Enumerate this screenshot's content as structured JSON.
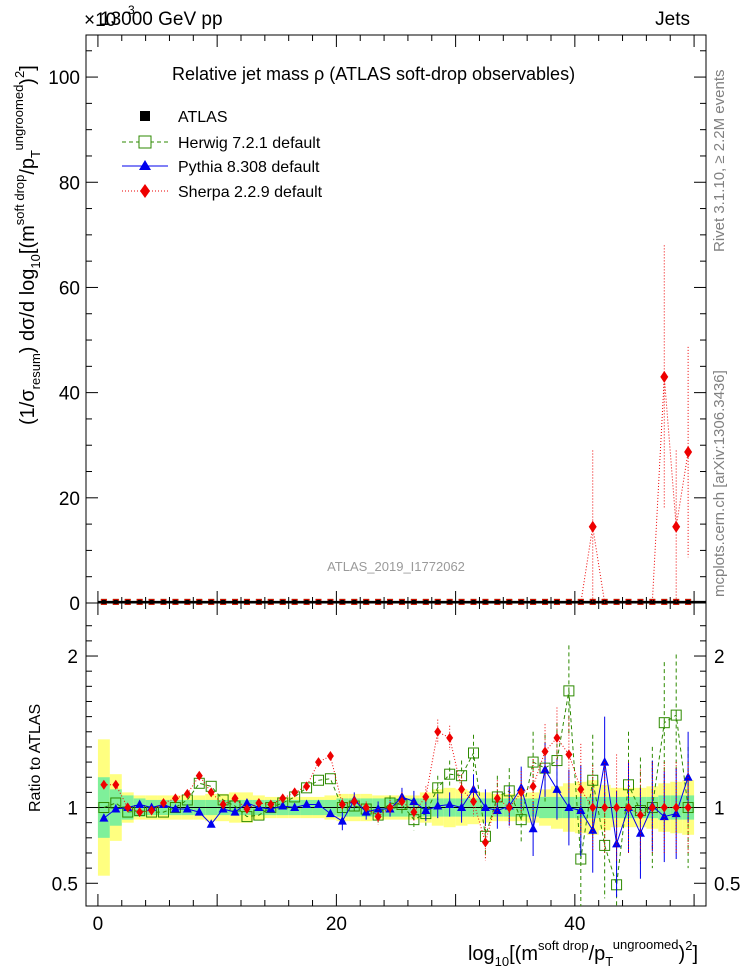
{
  "header": {
    "left": "13000 GeV pp",
    "right": "Jets",
    "exponent": "×10"
  },
  "side_labels": {
    "rivet": "Rivet 3.1.10, ≥ 2.2M events",
    "mcplots": "mcplots.cern.ch [arXiv:1306.3436]"
  },
  "watermark": "ATLAS_2019_I1772062",
  "colors": {
    "atlas": "#000000",
    "herwig": "#2d8a00",
    "pythia": "#0000ee",
    "sherpa": "#ee0000",
    "band_inner": "#7ff09a",
    "band_outer": "#ffff80"
  },
  "chart_data": [
    {
      "type": "scatter",
      "title": "Relative jet mass ρ (ATLAS soft-drop observables)",
      "ylabel": "(1/σ_resum) dσ/d log10[(m^{soft drop}/p_T^{ungroomed})^2]",
      "ylabel_parts": {
        "pre": "(1/σ",
        "sub1": "resum",
        "mid": ") dσ/d log",
        "sub2": "10",
        "post": "[(m",
        "sup1": "soft drop",
        "mid2": "/p",
        "sub3": "T",
        "sup2": "ungroomed",
        "end": ")",
        "sup3": "2",
        "close": "]"
      },
      "xlim": [
        -1,
        51
      ],
      "ylim": [
        0,
        108
      ],
      "yticks": [
        0,
        20,
        40,
        60,
        80,
        100
      ],
      "y_multiplier_label": "×10³",
      "legend_position": "top-left",
      "series": [
        {
          "name": "ATLAS",
          "marker": "square",
          "x": [
            0.5,
            1.5,
            2.5,
            3.5,
            4.5,
            5.5,
            6.5,
            7.5,
            8.5,
            9.5,
            10.5,
            11.5,
            12.5,
            13.5,
            14.5,
            15.5,
            16.5,
            17.5,
            18.5,
            19.5,
            20.5,
            21.5,
            22.5,
            23.5,
            24.5,
            25.5,
            26.5,
            27.5,
            28.5,
            29.5,
            30.5,
            31.5,
            32.5,
            33.5,
            34.5,
            35.5,
            36.5,
            37.5,
            38.5,
            39.5,
            40.5,
            41.5,
            42.5,
            43.5,
            44.5,
            45.5,
            46.5,
            47.5,
            48.5,
            49.5
          ],
          "y": [
            0.02,
            0.02,
            0.02,
            0.02,
            0.02,
            0.02,
            0.02,
            0.02,
            0.02,
            0.02,
            0.02,
            0.02,
            0.02,
            0.02,
            0.02,
            0.02,
            0.02,
            0.02,
            0.02,
            0.02,
            0.02,
            0.02,
            0.02,
            0.02,
            0.02,
            0.02,
            0.02,
            0.02,
            0.02,
            0.02,
            0.02,
            0.02,
            0.02,
            0.02,
            0.02,
            0.02,
            0.02,
            0.02,
            0.02,
            0.02,
            0.02,
            0.02,
            0.02,
            0.02,
            0.02,
            0.02,
            0.02,
            0.02,
            0.02,
            0.02
          ]
        },
        {
          "name": "Herwig 7.2.1 default",
          "marker": "open-square",
          "x": [],
          "y": []
        },
        {
          "name": "Pythia 8.308 default",
          "marker": "triangle",
          "x": [],
          "y": []
        },
        {
          "name": "Sherpa 2.2.9 default",
          "marker": "diamond",
          "x": [
            41.5,
            47.5,
            48.5,
            49.5
          ],
          "y": [
            14.5,
            43.0,
            14.5,
            28.7
          ],
          "err": [
            14.5,
            25.0,
            14.5,
            20.0
          ]
        }
      ]
    },
    {
      "type": "line",
      "ylabel": "Ratio to ATLAS",
      "xlabel": "log10[(m^{soft drop}/p_T^{ungroomed})^2]",
      "xlabel_parts": {
        "pre": "log",
        "sub1": "10",
        "mid": "[(m",
        "sup1": "soft drop",
        "mid2": "/p",
        "sub2": "T",
        "sup2": "ungroomed",
        "end": ")",
        "sup3": "2",
        "close": "]"
      },
      "xlim": [
        -1,
        51
      ],
      "ylim": [
        0.35,
        2.35
      ],
      "yticks": [
        0.5,
        1,
        2
      ],
      "xticks": [
        0,
        20,
        40
      ],
      "x": [
        0.5,
        1.5,
        2.5,
        3.5,
        4.5,
        5.5,
        6.5,
        7.5,
        8.5,
        9.5,
        10.5,
        11.5,
        12.5,
        13.5,
        14.5,
        15.5,
        16.5,
        17.5,
        18.5,
        19.5,
        20.5,
        21.5,
        22.5,
        23.5,
        24.5,
        25.5,
        26.5,
        27.5,
        28.5,
        29.5,
        30.5,
        31.5,
        32.5,
        33.5,
        34.5,
        35.5,
        36.5,
        37.5,
        38.5,
        39.5,
        40.5,
        41.5,
        42.5,
        43.5,
        44.5,
        45.5,
        46.5,
        47.5,
        48.5,
        49.5
      ],
      "band_inner": [
        0.2,
        0.12,
        0.08,
        0.06,
        0.05,
        0.05,
        0.05,
        0.05,
        0.05,
        0.05,
        0.05,
        0.05,
        0.05,
        0.05,
        0.05,
        0.05,
        0.05,
        0.05,
        0.05,
        0.05,
        0.06,
        0.06,
        0.06,
        0.06,
        0.06,
        0.06,
        0.06,
        0.06,
        0.06,
        0.06,
        0.06,
        0.06,
        0.06,
        0.06,
        0.06,
        0.06,
        0.06,
        0.07,
        0.07,
        0.07,
        0.07,
        0.07,
        0.07,
        0.07,
        0.07,
        0.07,
        0.07,
        0.08,
        0.08,
        0.08
      ],
      "band_outer": [
        0.45,
        0.22,
        0.1,
        0.08,
        0.08,
        0.08,
        0.08,
        0.08,
        0.08,
        0.09,
        0.09,
        0.1,
        0.1,
        0.08,
        0.07,
        0.07,
        0.07,
        0.07,
        0.07,
        0.08,
        0.09,
        0.09,
        0.09,
        0.08,
        0.08,
        0.08,
        0.08,
        0.1,
        0.12,
        0.13,
        0.12,
        0.11,
        0.1,
        0.09,
        0.09,
        0.09,
        0.1,
        0.12,
        0.14,
        0.16,
        0.17,
        0.18,
        0.15,
        0.13,
        0.13,
        0.13,
        0.14,
        0.16,
        0.17,
        0.18
      ],
      "series": [
        {
          "name": "Herwig 7.2.1 default",
          "y": [
            1.0,
            1.03,
            0.97,
            0.98,
            0.97,
            0.97,
            1.0,
            1.05,
            1.16,
            1.14,
            1.05,
            1.01,
            0.94,
            0.95,
            1.0,
            1.03,
            1.07,
            1.13,
            1.18,
            1.19,
            1.0,
            1.01,
            0.99,
            0.95,
            1.03,
            1.02,
            0.92,
            0.96,
            1.13,
            1.22,
            1.21,
            1.36,
            0.81,
            1.07,
            1.11,
            0.92,
            1.3,
            1.26,
            1.31,
            1.77,
            0.66,
            1.18,
            0.75,
            0.49,
            1.15,
            0.98,
            1.0,
            1.56,
            1.61,
            1.0
          ],
          "err": [
            0,
            0,
            0,
            0,
            0,
            0,
            0,
            0,
            0,
            0,
            0,
            0,
            0,
            0,
            0,
            0,
            0,
            0,
            0,
            0,
            0.04,
            0.04,
            0.04,
            0.05,
            0.05,
            0.06,
            0.07,
            0.08,
            0.08,
            0.09,
            0.1,
            0.12,
            0.14,
            0.14,
            0.15,
            0.16,
            0.2,
            0.22,
            0.25,
            0.3,
            0.35,
            0.3,
            0.35,
            0.4,
            0.35,
            0.35,
            0.4,
            0.4,
            0.4,
            0.4
          ]
        },
        {
          "name": "Pythia 8.308 default",
          "y": [
            0.93,
            0.99,
            1.0,
            1.02,
            1.0,
            1.02,
            0.99,
            0.99,
            0.97,
            0.89,
            0.99,
            0.97,
            1.03,
            1.0,
            0.99,
            1.01,
            1.0,
            1.02,
            1.02,
            0.96,
            0.91,
            1.05,
            0.97,
            0.99,
            0.99,
            1.07,
            1.04,
            0.98,
            1.01,
            1.02,
            1.0,
            1.12,
            1.0,
            0.98,
            1.01,
            1.13,
            0.86,
            1.25,
            1.12,
            1.0,
            0.98,
            0.85,
            1.3,
            0.76,
            1.0,
            0.83,
            1.01,
            0.94,
            0.96,
            1.2
          ],
          "err": [
            0,
            0,
            0,
            0,
            0,
            0,
            0,
            0,
            0,
            0,
            0,
            0,
            0,
            0,
            0,
            0,
            0,
            0,
            0,
            0,
            0.06,
            0.05,
            0.05,
            0.05,
            0.05,
            0.06,
            0.07,
            0.07,
            0.08,
            0.08,
            0.1,
            0.1,
            0.12,
            0.12,
            0.13,
            0.14,
            0.18,
            0.18,
            0.2,
            0.25,
            0.3,
            0.28,
            0.3,
            0.35,
            0.3,
            0.3,
            0.3,
            0.3,
            0.3,
            0.3
          ]
        },
        {
          "name": "Sherpa 2.2.9 default",
          "y": [
            1.15,
            1.15,
            1.0,
            0.97,
            0.98,
            1.03,
            1.06,
            1.09,
            1.21,
            1.1,
            1.02,
            1.06,
            0.99,
            1.03,
            1.02,
            1.06,
            1.1,
            1.14,
            1.3,
            1.34,
            1.02,
            1.04,
            1.0,
            0.94,
            1.0,
            1.04,
            0.97,
            1.07,
            1.5,
            1.46,
            1.12,
            1.04,
            0.77,
            1.06,
            1.0,
            1.1,
            1.14,
            1.37,
            1.46,
            1.35,
            1.12,
            1.0,
            1.0,
            1.0,
            1.0,
            0.95,
            1.0,
            1.0,
            1.0,
            1.0
          ],
          "err": [
            0,
            0,
            0,
            0,
            0,
            0,
            0,
            0,
            0,
            0,
            0,
            0,
            0,
            0,
            0,
            0,
            0,
            0,
            0,
            0,
            0.04,
            0.04,
            0.04,
            0.05,
            0.05,
            0.06,
            0.07,
            0.07,
            0.08,
            0.08,
            0.1,
            0.1,
            0.12,
            0.12,
            0.13,
            0.14,
            0.18,
            0.18,
            0.2,
            0.25,
            0.3,
            0.28,
            0.3,
            0.35,
            0.3,
            0.3,
            0.3,
            0.3,
            0.3,
            0.3
          ]
        }
      ]
    }
  ]
}
